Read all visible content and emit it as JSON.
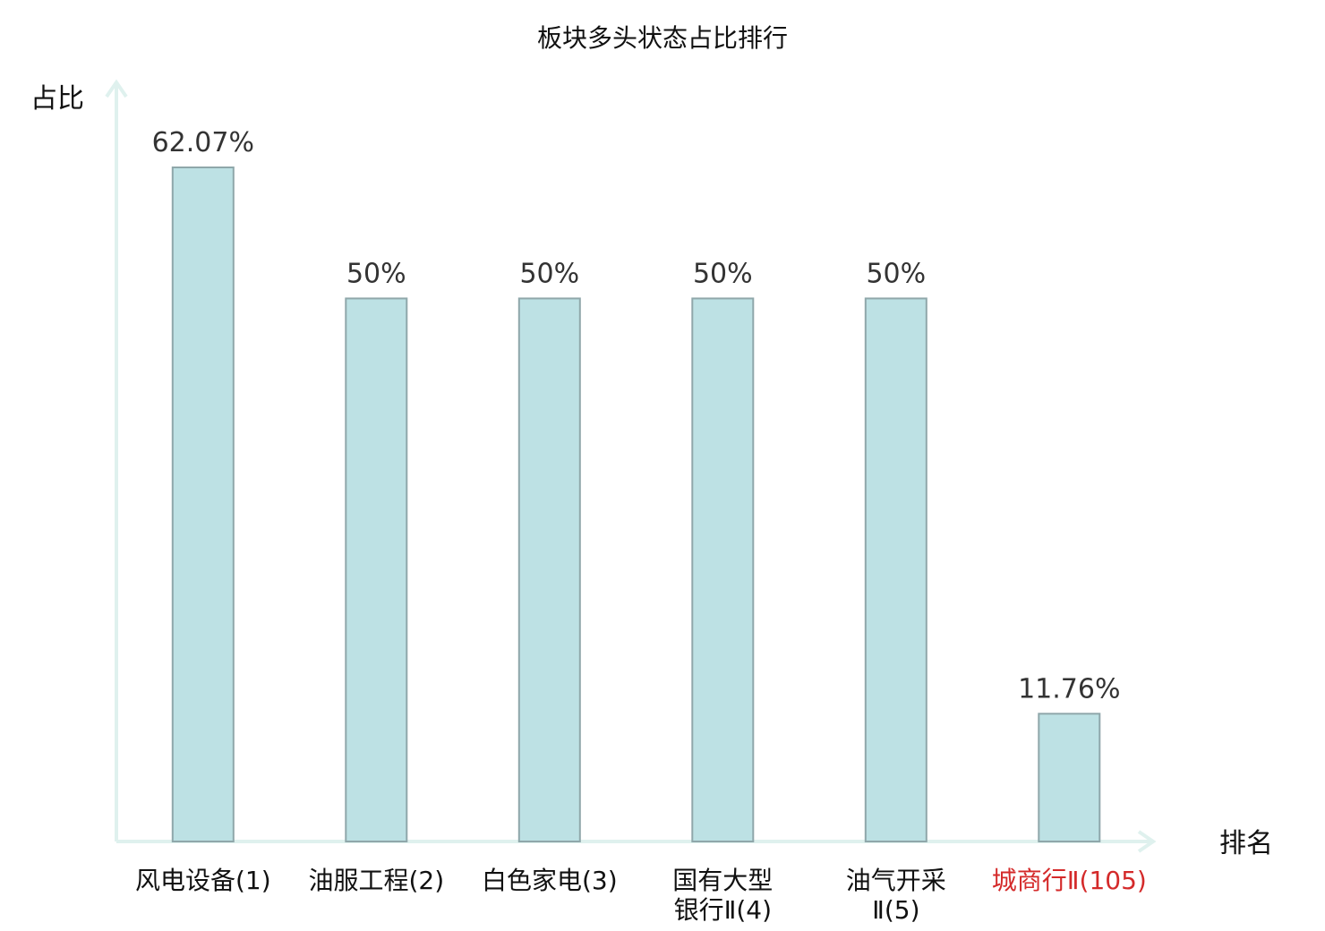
{
  "chart_data": {
    "type": "bar",
    "title": "板块多头状态占比排行",
    "ylabel": "占比",
    "xlabel": "排名",
    "ylim": [
      0,
      70
    ],
    "grid": false,
    "legend": "none",
    "categories": [
      [
        "风电设备(1)"
      ],
      [
        "油服工程(2)"
      ],
      [
        "白色家电(3)"
      ],
      [
        "国有大型",
        "银行Ⅱ(4)"
      ],
      [
        "油气开采",
        "Ⅱ(5)"
      ],
      [
        "城商行Ⅱ(105)"
      ]
    ],
    "values": [
      62.07,
      50,
      50,
      50,
      50,
      11.76
    ],
    "value_labels": [
      "62.07%",
      "50%",
      "50%",
      "50%",
      "50%",
      "11.76%"
    ],
    "highlight_index": 5,
    "colors": {
      "bar_fill": "#bde1e4",
      "bar_stroke": "#8fa7aa",
      "axis": "#dff1ee",
      "highlight_text": "#d42a2a",
      "text": "#111111"
    }
  }
}
